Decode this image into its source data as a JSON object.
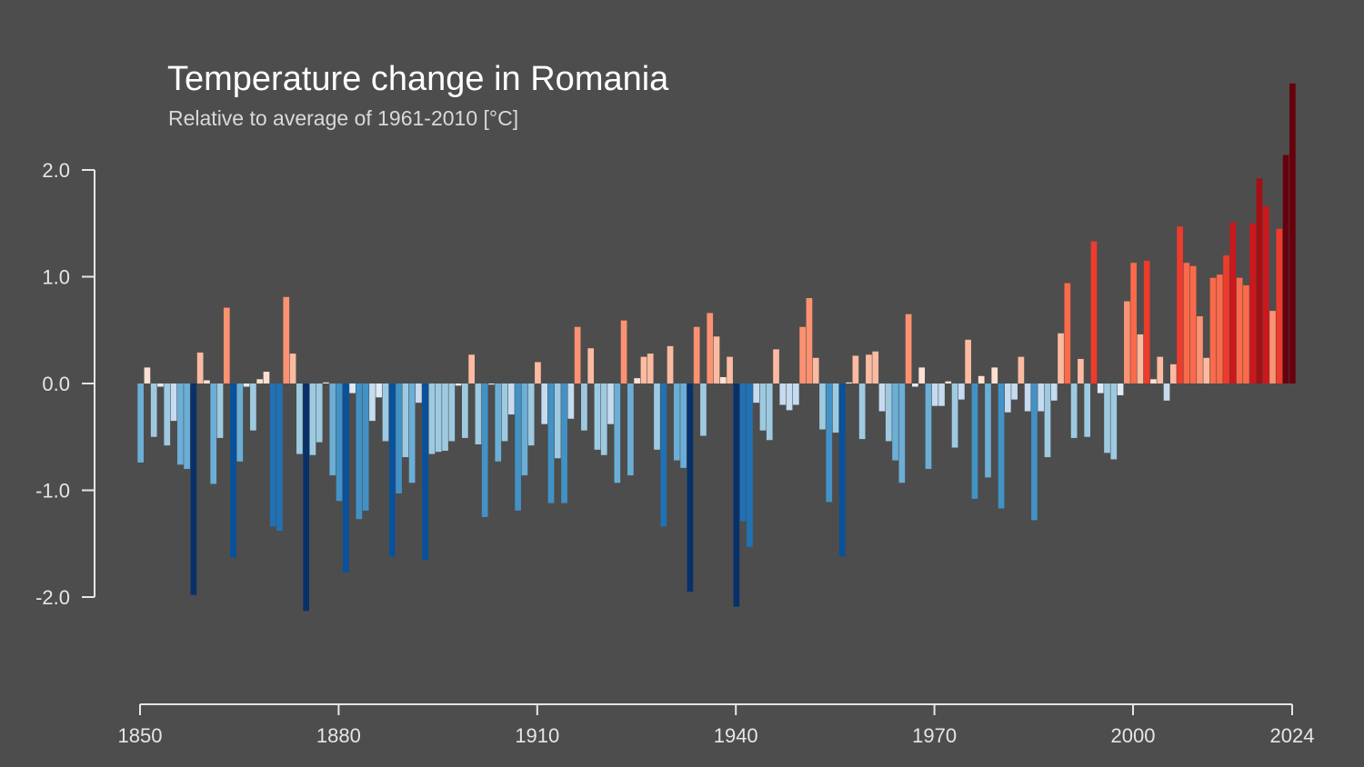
{
  "chart_data": {
    "type": "bar",
    "title": "Temperature change in Romania",
    "subtitle": "Relative to average of 1961-2010  [°C]",
    "xlabel": "",
    "ylabel": "",
    "ylim": [
      -2.5,
      2.9
    ],
    "xlim": [
      1850,
      2024
    ],
    "grid": false,
    "legend": "none",
    "ytick_labels": [
      "2.0",
      "1.0",
      "0.0",
      "-1.0",
      "-2.0"
    ],
    "ytick_values": [
      2.0,
      1.0,
      0.0,
      -1.0,
      -2.0
    ],
    "xtick_labels": [
      "1850",
      "1880",
      "1910",
      "1940",
      "1970",
      "2000",
      "2024"
    ],
    "xtick_values": [
      1850,
      1880,
      1910,
      1940,
      1970,
      2000,
      2024
    ],
    "colors": {
      "background": "#4d4d4d",
      "cold_extreme": "#08306b",
      "warm_extreme": "#67000d"
    },
    "x": [
      1850,
      1851,
      1852,
      1853,
      1854,
      1855,
      1856,
      1857,
      1858,
      1859,
      1860,
      1861,
      1862,
      1863,
      1864,
      1865,
      1866,
      1867,
      1868,
      1869,
      1870,
      1871,
      1872,
      1873,
      1874,
      1875,
      1876,
      1877,
      1878,
      1879,
      1880,
      1881,
      1882,
      1883,
      1884,
      1885,
      1886,
      1887,
      1888,
      1889,
      1890,
      1891,
      1892,
      1893,
      1894,
      1895,
      1896,
      1897,
      1898,
      1899,
      1900,
      1901,
      1902,
      1903,
      1904,
      1905,
      1906,
      1907,
      1908,
      1909,
      1910,
      1911,
      1912,
      1913,
      1914,
      1915,
      1916,
      1917,
      1918,
      1919,
      1920,
      1921,
      1922,
      1923,
      1924,
      1925,
      1926,
      1927,
      1928,
      1929,
      1930,
      1931,
      1932,
      1933,
      1934,
      1935,
      1936,
      1937,
      1938,
      1939,
      1940,
      1941,
      1942,
      1943,
      1944,
      1945,
      1946,
      1947,
      1948,
      1949,
      1950,
      1951,
      1952,
      1953,
      1954,
      1955,
      1956,
      1957,
      1958,
      1959,
      1960,
      1961,
      1962,
      1963,
      1964,
      1965,
      1966,
      1967,
      1968,
      1969,
      1970,
      1971,
      1972,
      1973,
      1974,
      1975,
      1976,
      1977,
      1978,
      1979,
      1980,
      1981,
      1982,
      1983,
      1984,
      1985,
      1986,
      1987,
      1988,
      1989,
      1990,
      1991,
      1992,
      1993,
      1994,
      1995,
      1996,
      1997,
      1998,
      1999,
      2000,
      2001,
      2002,
      2003,
      2004,
      2005,
      2006,
      2007,
      2008,
      2009,
      2010,
      2011,
      2012,
      2013,
      2014,
      2015,
      2016,
      2017,
      2018,
      2019,
      2020,
      2021,
      2022,
      2023,
      2024
    ],
    "values": [
      -0.74,
      0.15,
      -0.5,
      -0.03,
      -0.58,
      -0.35,
      -0.76,
      -0.8,
      -1.98,
      0.29,
      0.03,
      -0.94,
      -0.51,
      0.71,
      -1.63,
      -0.73,
      -0.03,
      -0.44,
      0.04,
      0.11,
      -1.34,
      -1.38,
      0.81,
      0.28,
      -0.66,
      -2.13,
      -0.67,
      -0.55,
      0.01,
      -0.86,
      -1.1,
      -1.77,
      -0.09,
      -1.27,
      -1.19,
      -0.35,
      -0.13,
      -0.54,
      -1.62,
      -1.03,
      -0.69,
      -0.93,
      -0.18,
      -1.65,
      -0.66,
      -0.64,
      -0.63,
      -0.54,
      -0.02,
      -0.51,
      0.27,
      -0.57,
      -1.25,
      -0.01,
      -0.73,
      -0.54,
      -0.29,
      -1.19,
      -0.86,
      -0.58,
      0.2,
      -0.38,
      -1.12,
      -0.7,
      -1.12,
      -0.33,
      0.53,
      -0.44,
      0.33,
      -0.62,
      -0.67,
      -0.38,
      -0.93,
      0.59,
      -0.86,
      0.05,
      0.25,
      0.28,
      -0.62,
      -1.34,
      0.35,
      -0.72,
      -0.79,
      -1.95,
      0.53,
      -0.49,
      0.66,
      0.44,
      0.06,
      0.25,
      -2.09,
      -1.29,
      -1.53,
      -0.18,
      -0.44,
      -0.53,
      0.32,
      -0.2,
      -0.25,
      -0.2,
      0.53,
      0.8,
      0.24,
      -0.43,
      -1.11,
      -0.46,
      -1.62,
      0.01,
      0.26,
      -0.52,
      0.27,
      0.3,
      -0.26,
      -0.54,
      -0.72,
      -0.93,
      0.65,
      -0.03,
      0.15,
      -0.8,
      -0.21,
      -0.21,
      0.02,
      -0.6,
      -0.15,
      0.41,
      -1.08,
      0.07,
      -0.88,
      0.15,
      -1.17,
      -0.27,
      -0.15,
      0.25,
      -0.26,
      -1.28,
      -0.26,
      -0.69,
      -0.16,
      0.47,
      0.94,
      -0.51,
      0.23,
      -0.5,
      1.33,
      -0.09,
      -0.65,
      -0.71,
      -0.11,
      0.77,
      1.13,
      0.46,
      1.15,
      0.04,
      0.25,
      -0.16,
      0.18,
      1.47,
      1.13,
      1.1,
      0.63,
      0.24,
      0.99,
      1.02,
      1.2,
      1.51,
      0.99,
      0.92,
      1.5,
      1.92,
      1.66,
      0.68,
      1.45,
      2.14,
      2.81
    ]
  }
}
